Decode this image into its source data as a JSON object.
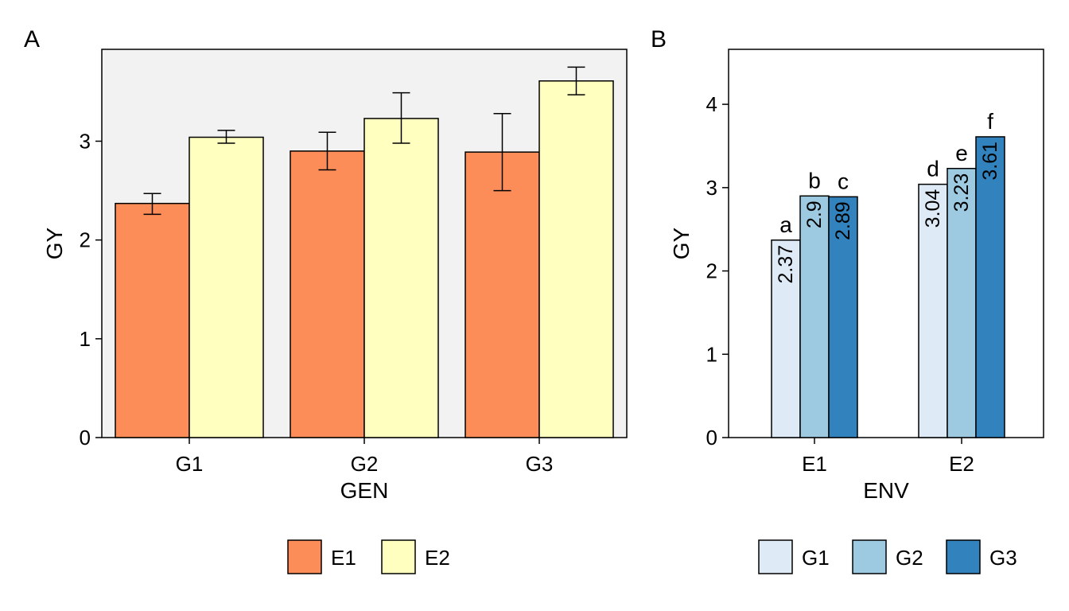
{
  "chart_data": [
    {
      "panel": "A",
      "type": "bar",
      "xlabel": "GEN",
      "ylabel": "GY",
      "categories": [
        "G1",
        "G2",
        "G3"
      ],
      "ylim": [
        0,
        3.93
      ],
      "yticks": [
        0,
        1,
        2,
        3
      ],
      "background": "#f2f2f2",
      "legend_position": "bottom",
      "series": [
        {
          "name": "E1",
          "color": "#fc8d59",
          "values": [
            2.37,
            2.9,
            2.89
          ],
          "err_low": [
            2.26,
            2.71,
            2.5
          ],
          "err_high": [
            2.47,
            3.09,
            3.28
          ]
        },
        {
          "name": "E2",
          "color": "#ffffbf",
          "values": [
            3.04,
            3.23,
            3.61
          ],
          "err_low": [
            2.98,
            2.98,
            3.47
          ],
          "err_high": [
            3.11,
            3.49,
            3.75
          ]
        }
      ]
    },
    {
      "panel": "B",
      "type": "bar",
      "xlabel": "ENV",
      "ylabel": "GY",
      "categories": [
        "E1",
        "E2"
      ],
      "ylim": [
        0,
        4.66
      ],
      "yticks": [
        0,
        1,
        2,
        3,
        4
      ],
      "background": "#ffffff",
      "legend_position": "bottom",
      "series": [
        {
          "name": "G1",
          "color": "#deebf7",
          "values": [
            2.37,
            3.04
          ],
          "labels": [
            "2.37",
            "3.04"
          ],
          "letters": [
            "a",
            "d"
          ]
        },
        {
          "name": "G2",
          "color": "#9ecae1",
          "values": [
            2.9,
            3.23
          ],
          "labels": [
            "2.9",
            "3.23"
          ],
          "letters": [
            "b",
            "e"
          ]
        },
        {
          "name": "G3",
          "color": "#3182bd",
          "values": [
            2.89,
            3.61
          ],
          "labels": [
            "2.89",
            "3.61"
          ],
          "letters": [
            "c",
            "f"
          ]
        }
      ]
    }
  ]
}
